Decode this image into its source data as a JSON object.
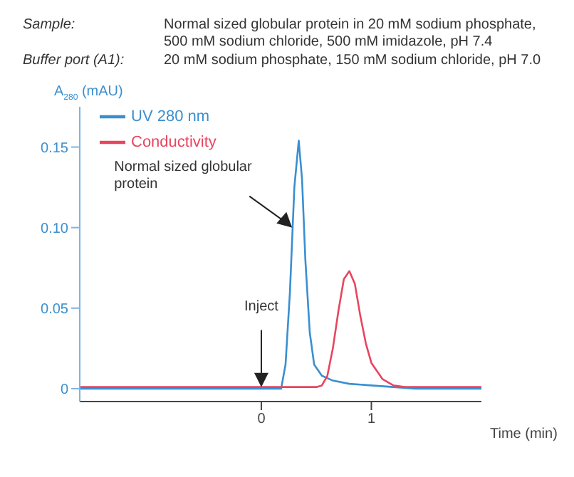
{
  "chart_data": {
    "type": "line",
    "ylabel": "A$_{280}$ (mAU)",
    "xlabel": "Time (min)",
    "xlim": [
      -1.65,
      2.0
    ],
    "xticks": [
      0,
      1
    ],
    "ylim": [
      -0.008,
      0.175
    ],
    "yticks": [
      0,
      0.05,
      {
        "value": 0.1,
        "label": "0.10"
      },
      0.15
    ],
    "grid": false,
    "legend": "top left",
    "marker": "none",
    "line_style": "solid",
    "series": [
      {
        "name": "UV 280 nm",
        "color": "#3a8fd0",
        "x": [
          -1.65,
          0.18,
          0.22,
          0.26,
          0.3,
          0.34,
          0.37,
          0.4,
          0.44,
          0.48,
          0.55,
          0.65,
          0.8,
          1.0,
          1.2,
          1.4,
          2.0
        ],
        "values": [
          0,
          0,
          0.015,
          0.06,
          0.125,
          0.154,
          0.13,
          0.08,
          0.035,
          0.015,
          0.008,
          0.005,
          0.003,
          0.002,
          0.001,
          0,
          0
        ]
      },
      {
        "name": "Conductivity",
        "color": "#e8455f",
        "x": [
          -1.65,
          0.5,
          0.55,
          0.6,
          0.65,
          0.7,
          0.75,
          0.8,
          0.85,
          0.9,
          0.95,
          1.0,
          1.1,
          1.2,
          1.3,
          2.0
        ],
        "values": [
          0.001,
          0.001,
          0.002,
          0.008,
          0.025,
          0.048,
          0.068,
          0.073,
          0.065,
          0.045,
          0.028,
          0.016,
          0.006,
          0.002,
          0.001,
          0.001
        ]
      }
    ],
    "annotations": [
      "Sample:",
      "Normal sized globular protein in 20 mM sodium phosphate, 500 mM sodium chloride, 500 mM imidazole, pH 7.4",
      "Buffer port (A1):",
      "20 mM sodium phosphate, 150 mM sodium chloride, pH 7.0",
      {
        "text": "Normal sized globular protein",
        "x": 0.28,
        "y": 0.1
      },
      {
        "text": "Inject",
        "x": 0,
        "y": 0.001
      }
    ]
  }
}
